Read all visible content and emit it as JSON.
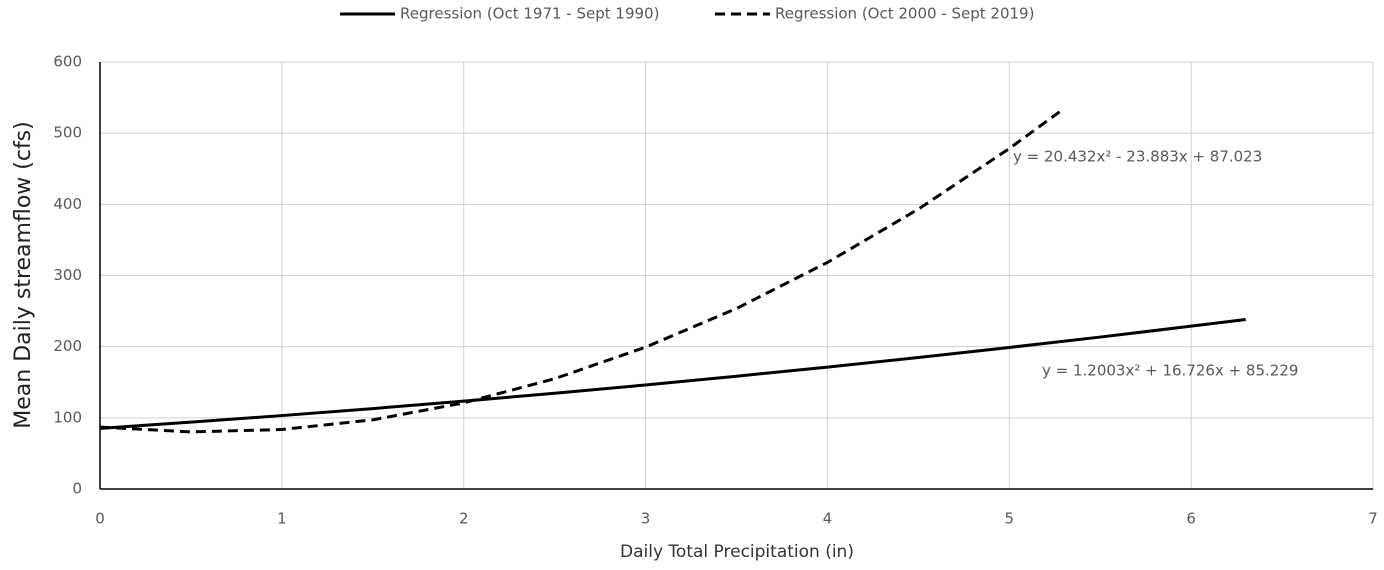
{
  "chart_data": {
    "type": "line",
    "x_label": "Daily Total Precipitation (in)",
    "y_label": "Mean Daily streamflow (cfs)",
    "xlim": [
      0,
      7
    ],
    "xticks": [
      0,
      1,
      2,
      3,
      4,
      5,
      6,
      7
    ],
    "ylim": [
      0,
      600
    ],
    "yticks": [
      0,
      100,
      200,
      300,
      400,
      500,
      600
    ],
    "grid": true,
    "legend": "top",
    "series": [
      {
        "name": "Regression (Oct 1971 - Sept 1990)",
        "color": "#000000",
        "dash": "solid",
        "x": [
          0,
          0.5,
          1,
          1.5,
          2,
          2.5,
          3,
          3.5,
          4,
          4.5,
          5,
          5.5,
          6,
          6.3
        ],
        "values": [
          85.2,
          93.9,
          103.2,
          113.0,
          123.5,
          134.5,
          146.2,
          158.5,
          171.3,
          184.8,
          198.9,
          213.5,
          228.8,
          238.2
        ]
      },
      {
        "name": "Regression (Oct 2000 - Sept 2019)",
        "color": "#000000",
        "dash": "dashed",
        "x": [
          0,
          0.5,
          1,
          1.5,
          2,
          2.5,
          3,
          3.5,
          4,
          4.5,
          5,
          5.3
        ],
        "values": [
          87.0,
          80.2,
          83.6,
          97.2,
          121.0,
          155.0,
          199.3,
          253.7,
          318.4,
          393.3,
          478.4,
          534.4
        ]
      }
    ],
    "annotations": [
      "y = 20.432x² - 23.883x + 87.023",
      "y = 1.2003x² + 16.726x + 85.229"
    ]
  }
}
